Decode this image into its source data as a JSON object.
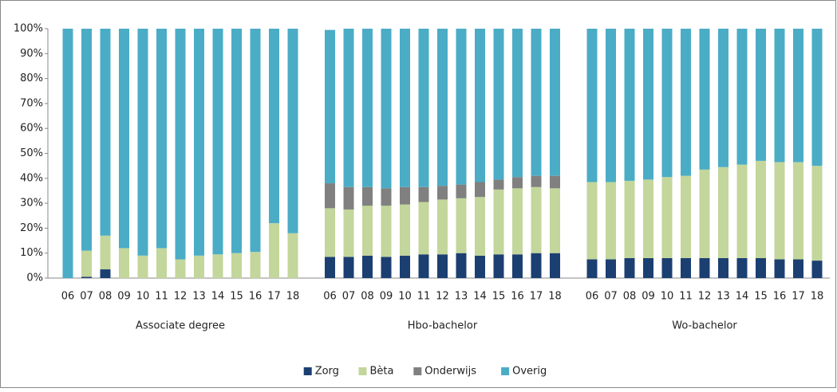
{
  "chart_data": {
    "type": "stacked-bar",
    "groups": [
      "Associate degree",
      "Hbo-bachelor",
      "Wo-bachelor"
    ],
    "categories": [
      "06",
      "07",
      "08",
      "09",
      "10",
      "11",
      "12",
      "13",
      "14",
      "15",
      "16",
      "17",
      "18"
    ],
    "series": [
      {
        "name": "Zorg",
        "color": "#1c3f72",
        "values": [
          [
            0,
            0.5,
            3.5,
            0,
            0,
            0,
            0,
            0,
            0,
            0,
            0,
            0,
            0
          ],
          [
            8.5,
            8.5,
            9,
            8.5,
            9,
            9.5,
            9.5,
            10,
            9,
            9.5,
            9.5,
            10,
            10
          ],
          [
            7.5,
            7.5,
            8,
            8,
            8,
            8,
            8,
            8,
            8,
            8,
            7.5,
            7.5,
            7
          ]
        ]
      },
      {
        "name": "Bèta",
        "color": "#c3d69b",
        "values": [
          [
            0,
            10.5,
            13.5,
            12,
            9,
            12,
            7.5,
            9,
            9.5,
            10,
            10.5,
            22,
            18
          ],
          [
            19.5,
            19,
            20,
            20.5,
            20.5,
            21,
            22,
            22,
            23.5,
            26,
            26.5,
            26.5,
            26
          ],
          [
            31,
            31,
            31,
            31.5,
            32.5,
            33,
            35.5,
            36.5,
            37.5,
            39,
            39,
            39,
            38
          ]
        ]
      },
      {
        "name": "Onderwijs",
        "color": "#808080",
        "values": [
          [
            0,
            0,
            0,
            0,
            0,
            0,
            0,
            0,
            0,
            0,
            0,
            0,
            0
          ],
          [
            10,
            9,
            7.5,
            7,
            7,
            6,
            5.5,
            5.5,
            6,
            4,
            4.5,
            4.5,
            5
          ],
          [
            0,
            0,
            0,
            0,
            0,
            0,
            0,
            0,
            0,
            0,
            0,
            0,
            0
          ]
        ]
      },
      {
        "name": "Overig",
        "color": "#4bacc6",
        "values": [
          [
            100,
            89,
            83,
            88,
            91,
            88,
            92.5,
            91,
            90.5,
            90,
            89.5,
            78,
            82
          ],
          [
            61.5,
            63.5,
            63.5,
            64,
            63.5,
            63.5,
            63,
            62.5,
            61.5,
            60.5,
            59.5,
            59,
            59
          ],
          [
            61.5,
            61.5,
            61,
            60.5,
            59.5,
            59,
            56.5,
            55.5,
            54.5,
            53,
            53.5,
            53.5,
            55
          ]
        ]
      }
    ],
    "ylim": [
      0,
      100
    ],
    "yticks": [
      {
        "value": 0,
        "label": "0%"
      },
      {
        "value": 10,
        "label": "10%"
      },
      {
        "value": 20,
        "label": "20%"
      },
      {
        "value": 30,
        "label": "30%"
      },
      {
        "value": 40,
        "label": "40%"
      },
      {
        "value": 50,
        "label": "50%"
      },
      {
        "value": 60,
        "label": "60%"
      },
      {
        "value": 70,
        "label": "70%"
      },
      {
        "value": 80,
        "label": "80%"
      },
      {
        "value": 90,
        "label": "90%"
      },
      {
        "value": 100,
        "label": "100%"
      }
    ],
    "legend": "bottom"
  }
}
